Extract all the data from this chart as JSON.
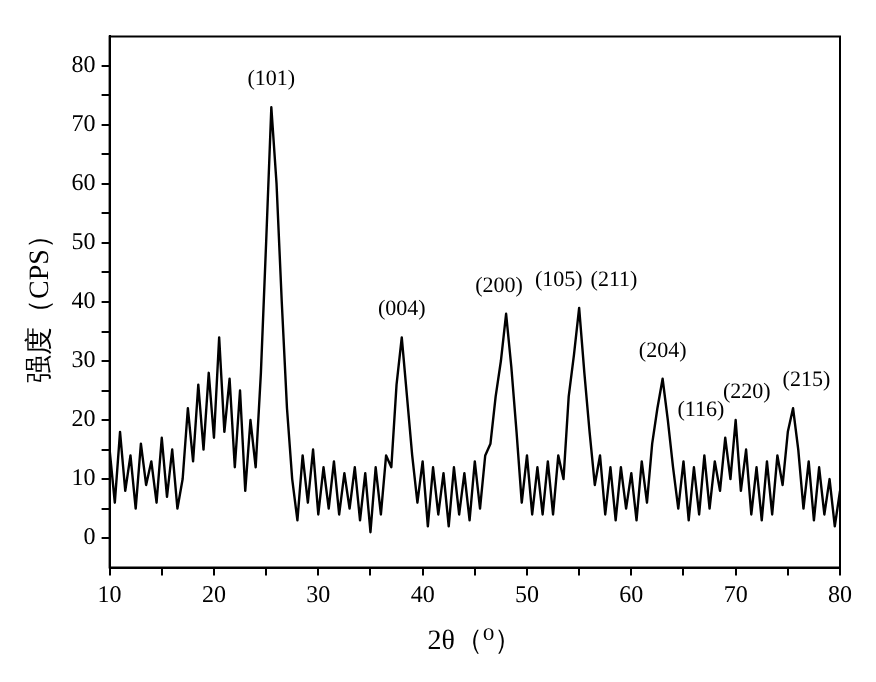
{
  "chart_data": {
    "type": "line",
    "xlabel": "2θ（⁰）",
    "ylabel": "强度（CPS）",
    "x": [
      10,
      10.5,
      11,
      11.5,
      12,
      12.5,
      13,
      13.5,
      14,
      14.5,
      15,
      15.5,
      16,
      16.5,
      17,
      17.5,
      18,
      18.5,
      19,
      19.5,
      20,
      20.5,
      21,
      21.5,
      22,
      22.5,
      23,
      23.5,
      24,
      24.5,
      25,
      25.5,
      26,
      26.5,
      27,
      27.5,
      28,
      28.5,
      29,
      29.5,
      30,
      30.5,
      31,
      31.5,
      32,
      32.5,
      33,
      33.5,
      34,
      34.5,
      35,
      35.5,
      36,
      36.5,
      37,
      37.5,
      38,
      38.5,
      39,
      39.5,
      40,
      40.5,
      41,
      41.5,
      42,
      42.5,
      43,
      43.5,
      44,
      44.5,
      45,
      45.5,
      46,
      46.5,
      47,
      47.5,
      48,
      48.5,
      49,
      49.5,
      50,
      50.5,
      51,
      51.5,
      52,
      52.5,
      53,
      53.5,
      54,
      54.5,
      55,
      55.5,
      56,
      56.5,
      57,
      57.5,
      58,
      58.5,
      59,
      59.5,
      60,
      60.5,
      61,
      61.5,
      62,
      62.5,
      63,
      63.5,
      64,
      64.5,
      65,
      65.5,
      66,
      66.5,
      67,
      67.5,
      68,
      68.5,
      69,
      69.5,
      70,
      70.5,
      71,
      71.5,
      72,
      72.5,
      73,
      73.5,
      74,
      74.5,
      75,
      75.5,
      76,
      76.5,
      77,
      77.5,
      78,
      78.5,
      79,
      79.5,
      80
    ],
    "series": [
      {
        "color": "#000000",
        "values": [
          15,
          6,
          18,
          8,
          14,
          5,
          16,
          9,
          13,
          6,
          17,
          7,
          15,
          5,
          10,
          22,
          13,
          26,
          15,
          28,
          17,
          34,
          18,
          27,
          12,
          25,
          8,
          20,
          12,
          28,
          50,
          73,
          60,
          40,
          22,
          10,
          3,
          14,
          6,
          15,
          4,
          12,
          5,
          13,
          4,
          11,
          5,
          12,
          3,
          11,
          1,
          12,
          4,
          14,
          12,
          26,
          34,
          24,
          14,
          6,
          13,
          2,
          12,
          4,
          11,
          2,
          12,
          4,
          11,
          3,
          13,
          5,
          14,
          16,
          24,
          30,
          38,
          29,
          18,
          6,
          14,
          4,
          12,
          4,
          13,
          4,
          14,
          10,
          24,
          31,
          39,
          28,
          18,
          9,
          14,
          4,
          12,
          3,
          12,
          5,
          11,
          3,
          13,
          6,
          16,
          22,
          27,
          20,
          12,
          5,
          13,
          3,
          12,
          4,
          14,
          5,
          13,
          8,
          17,
          10,
          20,
          8,
          15,
          4,
          12,
          3,
          13,
          4,
          14,
          9,
          18,
          22,
          15,
          5,
          13,
          3,
          12,
          4,
          10,
          2,
          8
        ]
      }
    ],
    "xlim": [
      10,
      80
    ],
    "xticks": [
      10,
      {
        "value": 15,
        "label": null
      },
      20,
      {
        "value": 25,
        "label": null
      },
      30,
      {
        "value": 35,
        "label": null
      },
      40,
      {
        "value": 45,
        "label": null
      },
      50,
      {
        "value": 55,
        "label": null
      },
      60,
      {
        "value": 65,
        "label": null
      },
      70,
      {
        "value": 75,
        "label": null
      },
      80
    ],
    "ylim": [
      -5,
      85
    ],
    "yticks": [
      0,
      {
        "value": 5,
        "label": null
      },
      10,
      {
        "value": 15,
        "label": null
      },
      20,
      {
        "value": 25,
        "label": null
      },
      30,
      {
        "value": 35,
        "label": null
      },
      40,
      {
        "value": 45,
        "label": null
      },
      50,
      {
        "value": 55,
        "label": null
      },
      60,
      {
        "value": 65,
        "label": null
      },
      70,
      {
        "value": 75,
        "label": null
      },
      80
    ],
    "grid": false,
    "legend": false,
    "marker": "none",
    "line_style": "solid",
    "annotations": [
      {
        "text": "(101)",
        "x": 25.5,
        "y": 73
      },
      {
        "text": "(004)",
        "x": 38,
        "y": 34
      },
      {
        "text": "(200)",
        "x": 48,
        "y": 38
      },
      {
        "text": "(105)",
        "x": 55,
        "y": 39
      },
      {
        "text": "(211)",
        "x": 55,
        "y": 39
      },
      {
        "text": "(204)",
        "x": 63,
        "y": 27
      },
      {
        "text": "(116)",
        "x": 69,
        "y": 17
      },
      {
        "text": "(220)",
        "x": 70,
        "y": 20
      },
      {
        "text": "(215)",
        "x": 75.5,
        "y": 22
      }
    ]
  }
}
